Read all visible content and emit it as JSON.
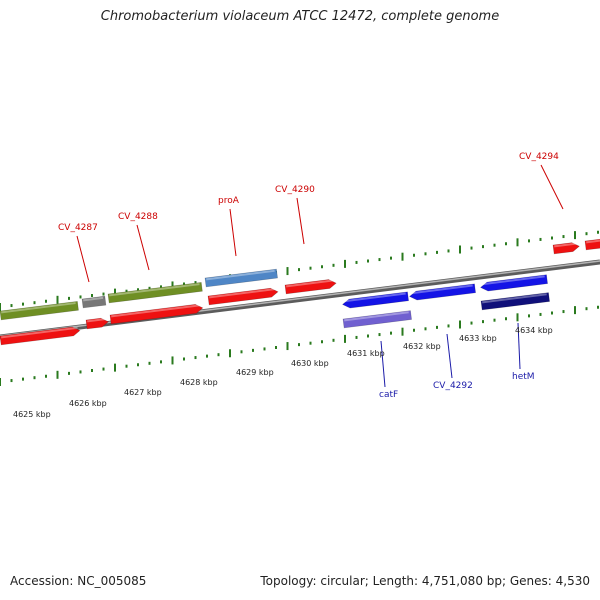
{
  "title": "Chromobacterium violaceum ATCC 12472, complete genome",
  "footer": {
    "accession": "Accession: NC_005085",
    "summary": "Topology: circular; Length: 4,751,080 bp; Genes: 4,530"
  },
  "colors": {
    "forward_cds": "#ee1111",
    "reverse_cds": "#1414e6",
    "olive_feature": "#6f8f24",
    "gray_feature": "#777777",
    "light_blue_feature": "#4f86c6",
    "purple_feature": "#7060d0",
    "navy_feature": "#10107a",
    "backbone": "#8a8a8a",
    "ticks": "#2a7a1e",
    "forward_label": "#cc0000",
    "reverse_label": "#1a1aa8"
  },
  "kbp_ticks": [
    "4625 kbp",
    "4626 kbp",
    "4627 kbp",
    "4628 kbp",
    "4629 kbp",
    "4630 kbp",
    "4631 kbp",
    "4632 kbp",
    "4633 kbp",
    "4634 kbp"
  ],
  "forward_labels": [
    "CV_4287",
    "CV_4288",
    "proA",
    "CV_4290",
    "CV_4294"
  ],
  "reverse_labels": [
    "catF",
    "CV_4292",
    "hetM"
  ]
}
